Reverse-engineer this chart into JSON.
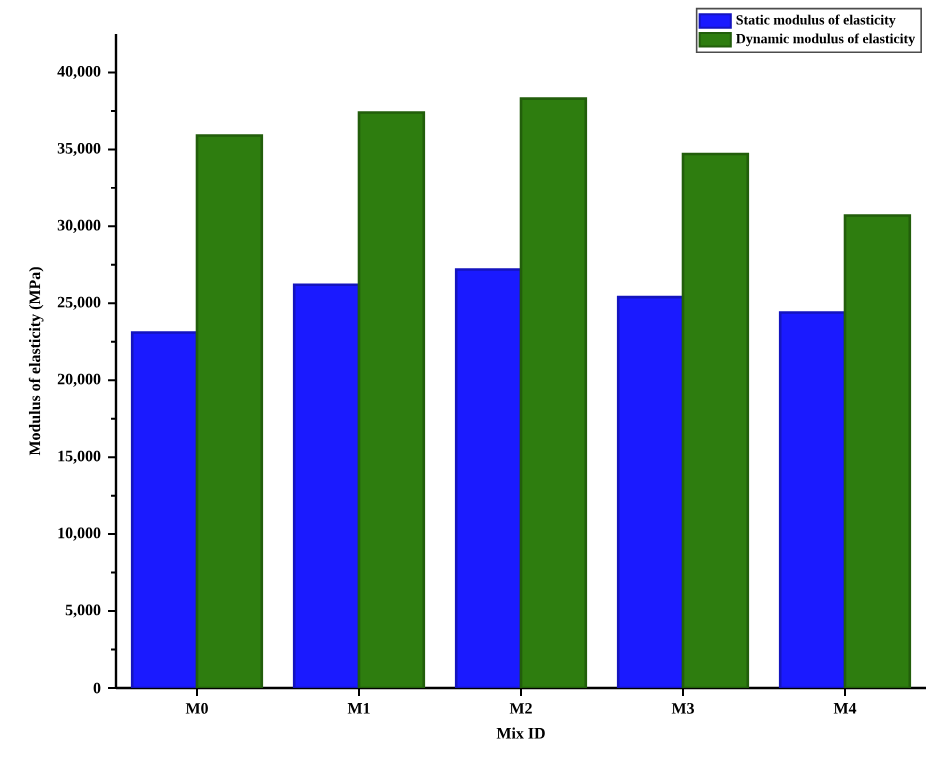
{
  "chart_data": {
    "type": "bar",
    "xlabel": "Mix ID",
    "ylabel": "Modulus of elasticity (MPa)",
    "categories": [
      "M0",
      "M1",
      "M2",
      "M3",
      "M4"
    ],
    "series": [
      {
        "name": "Static modulus of elasticity",
        "color": "#1a1aff",
        "values": [
          23100,
          26200,
          27200,
          25400,
          24400
        ]
      },
      {
        "name": "Dynamic modulus of elasticity",
        "color": "#2e7d0f",
        "values": [
          35900,
          37400,
          38300,
          34700,
          30700
        ]
      }
    ],
    "ylim": [
      0,
      42500
    ],
    "yticks": [
      0,
      {
        "value": 5000,
        "label": "5,000"
      },
      {
        "value": 10000,
        "label": "10,000"
      },
      {
        "value": 15000,
        "label": "15,000"
      },
      {
        "value": 20000,
        "label": "20,000"
      },
      {
        "value": 25000,
        "label": "25,000"
      },
      {
        "value": 30000,
        "label": "30,000"
      },
      {
        "value": 35000,
        "label": "35,000"
      },
      {
        "value": 40000,
        "label": "40,000"
      }
    ],
    "grid": false,
    "legend": "top right"
  }
}
